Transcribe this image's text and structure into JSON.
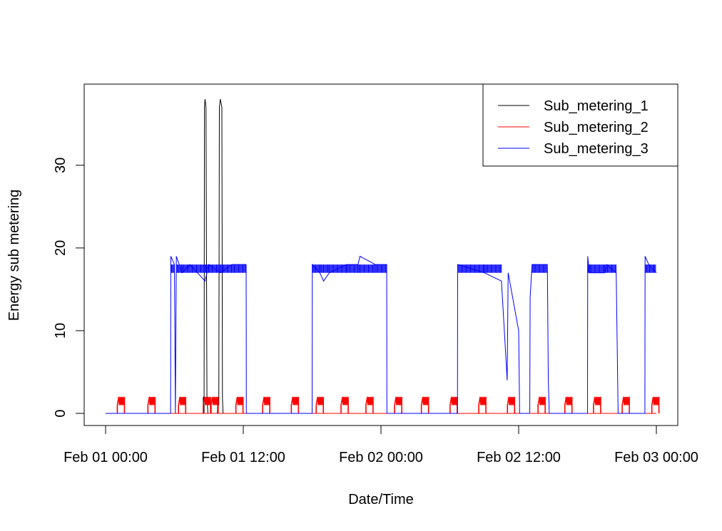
{
  "chart_data": {
    "type": "line",
    "title": "",
    "xlabel": "Date/Time",
    "ylabel": "Energy sub metering",
    "x_unit": "datetime",
    "xlim": [
      "2007-02-01 00:00",
      "2007-02-03 00:00"
    ],
    "ylim": [
      0,
      38
    ],
    "x_ticks": [
      {
        "value": "2007-02-01 00:00",
        "label": "Feb 01 00:00"
      },
      {
        "value": "2007-02-01 12:00",
        "label": "Feb 01 12:00"
      },
      {
        "value": "2007-02-02 00:00",
        "label": "Feb 02 00:00"
      },
      {
        "value": "2007-02-02 12:00",
        "label": "Feb 02 12:00"
      },
      {
        "value": "2007-02-03 00:00",
        "label": "Feb 03 00:00"
      }
    ],
    "y_ticks": [
      0,
      10,
      20,
      30
    ],
    "grid": false,
    "legend_position": "top-right",
    "series": [
      {
        "name": "Sub_metering_1",
        "color": "#000000",
        "points": [
          [
            "2007-02-01 00:00",
            0
          ],
          [
            "2007-02-01 08:30",
            0
          ],
          [
            "2007-02-01 08:31",
            2
          ],
          [
            "2007-02-01 08:35",
            0
          ],
          [
            "2007-02-01 08:37",
            37
          ],
          [
            "2007-02-01 08:40",
            38
          ],
          [
            "2007-02-01 08:45",
            37
          ],
          [
            "2007-02-01 08:50",
            2
          ],
          [
            "2007-02-01 08:55",
            0
          ],
          [
            "2007-02-01 09:45",
            0
          ],
          [
            "2007-02-01 09:47",
            2
          ],
          [
            "2007-02-01 09:52",
            1
          ],
          [
            "2007-02-01 09:55",
            37
          ],
          [
            "2007-02-01 10:00",
            38
          ],
          [
            "2007-02-01 10:08",
            37
          ],
          [
            "2007-02-01 10:11",
            2
          ],
          [
            "2007-02-01 10:14",
            0
          ],
          [
            "2007-02-03 00:00",
            0
          ]
        ]
      },
      {
        "name": "Sub_metering_2",
        "color": "#ff0000",
        "cycle_times": [
          "2007-02-01 01:20",
          "2007-02-01 04:00",
          "2007-02-01 06:40",
          "2007-02-01 08:50",
          "2007-02-01 09:30",
          "2007-02-01 11:40",
          "2007-02-01 14:00",
          "2007-02-01 16:30",
          "2007-02-01 18:40",
          "2007-02-01 20:50",
          "2007-02-01 23:00",
          "2007-02-02 01:30",
          "2007-02-02 03:50",
          "2007-02-02 06:20",
          "2007-02-02 08:50",
          "2007-02-02 11:20",
          "2007-02-02 14:00",
          "2007-02-02 16:20",
          "2007-02-02 18:50",
          "2007-02-02 21:20",
          "2007-02-02 23:55"
        ],
        "cycle_peak": 2,
        "baseline": 0
      },
      {
        "name": "Sub_metering_3",
        "color": "#0000ff",
        "points": [
          [
            "2007-02-01 00:00",
            0
          ],
          [
            "2007-02-01 05:40",
            0
          ],
          [
            "2007-02-01 05:41",
            19
          ],
          [
            "2007-02-01 06:00",
            18
          ],
          [
            "2007-02-01 06:05",
            0
          ],
          [
            "2007-02-01 06:10",
            19
          ],
          [
            "2007-02-01 06:40",
            17
          ],
          [
            "2007-02-01 07:20",
            18
          ],
          [
            "2007-02-01 08:00",
            17
          ],
          [
            "2007-02-01 08:40",
            16
          ],
          [
            "2007-02-01 09:00",
            18
          ],
          [
            "2007-02-01 10:00",
            17
          ],
          [
            "2007-02-01 11:00",
            18
          ],
          [
            "2007-02-01 12:15",
            18
          ],
          [
            "2007-02-01 12:16",
            0
          ],
          [
            "2007-02-01 18:00",
            0
          ],
          [
            "2007-02-01 18:01",
            18
          ],
          [
            "2007-02-01 18:40",
            17
          ],
          [
            "2007-02-01 19:00",
            16
          ],
          [
            "2007-02-01 19:30",
            17
          ],
          [
            "2007-02-01 21:00",
            18
          ],
          [
            "2007-02-01 22:00",
            18
          ],
          [
            "2007-02-01 22:10",
            19
          ],
          [
            "2007-02-01 23:30",
            18
          ],
          [
            "2007-02-02 00:30",
            18
          ],
          [
            "2007-02-02 00:31",
            0
          ],
          [
            "2007-02-02 06:40",
            0
          ],
          [
            "2007-02-02 06:41",
            18
          ],
          [
            "2007-02-02 09:00",
            17
          ],
          [
            "2007-02-02 10:30",
            16
          ],
          [
            "2007-02-02 11:00",
            4
          ],
          [
            "2007-02-02 11:05",
            17
          ],
          [
            "2007-02-02 12:00",
            10
          ],
          [
            "2007-02-02 12:05",
            0
          ],
          [
            "2007-02-02 12:58",
            0
          ],
          [
            "2007-02-02 13:00",
            14
          ],
          [
            "2007-02-02 13:10",
            18
          ],
          [
            "2007-02-02 14:30",
            18
          ],
          [
            "2007-02-02 14:35",
            4
          ],
          [
            "2007-02-02 14:40",
            0
          ],
          [
            "2007-02-02 18:00",
            0
          ],
          [
            "2007-02-02 18:01",
            19
          ],
          [
            "2007-02-02 18:10",
            17
          ],
          [
            "2007-02-02 19:30",
            17
          ],
          [
            "2007-02-02 19:40",
            18
          ],
          [
            "2007-02-02 20:30",
            17
          ],
          [
            "2007-02-02 20:40",
            0
          ],
          [
            "2007-02-02 23:00",
            0
          ],
          [
            "2007-02-02 23:01",
            19
          ],
          [
            "2007-02-02 23:20",
            18
          ],
          [
            "2007-02-03 00:00",
            17
          ]
        ]
      }
    ]
  }
}
